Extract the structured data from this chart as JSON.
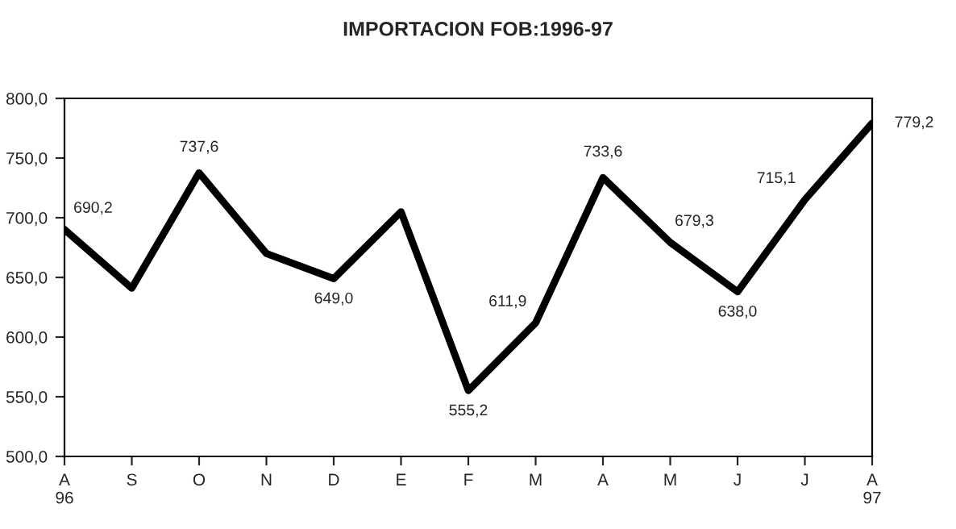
{
  "chart_data": {
    "type": "line",
    "title": "IMPORTACION FOB:1996-97",
    "categories": [
      "A\n96",
      "S",
      "O",
      "N",
      "D",
      "E",
      "F",
      "M",
      "A",
      "M",
      "J",
      "J",
      "A\n97"
    ],
    "series": [
      {
        "color": "#000000",
        "values": [
          690.2,
          641,
          737.6,
          670,
          649.0,
          705,
          555.2,
          611.9,
          733.6,
          679.3,
          638.0,
          715.1,
          779.2
        ],
        "value_labels": [
          "690,2",
          null,
          "737,6",
          null,
          "649,0",
          null,
          "555,2",
          "611,9",
          "733,6",
          "679,3",
          "638,0",
          "715,1",
          "779,2"
        ]
      }
    ],
    "ylim": [
      500,
      800
    ],
    "yticks": [
      {
        "value": 500,
        "label": "500,0"
      },
      {
        "value": 550,
        "label": "550,0"
      },
      {
        "value": 600,
        "label": "600,0"
      },
      {
        "value": 650,
        "label": "650,0"
      },
      {
        "value": 700,
        "label": "700,0"
      },
      {
        "value": 750,
        "label": "750,0"
      },
      {
        "value": 800,
        "label": "800,0"
      }
    ],
    "grid": false,
    "legend": false,
    "marker": "none",
    "line_style": "solid"
  }
}
